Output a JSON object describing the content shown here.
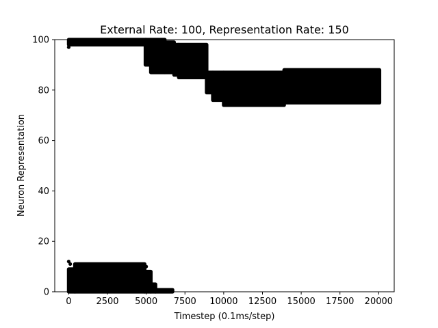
{
  "chart_data": {
    "type": "scatter",
    "title": "External Rate: 100, Representation Rate: 150",
    "xlabel": "Timestep (0.1ms/step)",
    "ylabel": "Neuron Representation",
    "xlim": [
      -900,
      21000
    ],
    "ylim": [
      0,
      100
    ],
    "xticks": [
      0,
      2500,
      5000,
      7500,
      10000,
      12500,
      15000,
      17500,
      20000
    ],
    "xtick_labels": [
      "0",
      "2500",
      "5000",
      "7500",
      "10000",
      "12500",
      "15000",
      "17500",
      "20000"
    ],
    "yticks": [
      0,
      20,
      40,
      60,
      80,
      100
    ],
    "ytick_labels": [
      "0",
      "20",
      "40",
      "60",
      "80",
      "100"
    ],
    "grid": false,
    "marker_color": "#000000",
    "bands": [
      {
        "x0": 0,
        "x1": 5000,
        "y0": 98,
        "y1": 100
      },
      {
        "x0": 4950,
        "x1": 5300,
        "y0": 90,
        "y1": 100
      },
      {
        "x0": 5300,
        "x1": 6200,
        "y0": 87,
        "y1": 100
      },
      {
        "x0": 6200,
        "x1": 6800,
        "y0": 87,
        "y1": 99
      },
      {
        "x0": 6800,
        "x1": 7100,
        "y0": 86,
        "y1": 98
      },
      {
        "x0": 7100,
        "x1": 8900,
        "y0": 85,
        "y1": 98
      },
      {
        "x0": 8900,
        "x1": 9300,
        "y0": 79,
        "y1": 87
      },
      {
        "x0": 9300,
        "x1": 10000,
        "y0": 76,
        "y1": 87
      },
      {
        "x0": 10000,
        "x1": 13900,
        "y0": 74,
        "y1": 87
      },
      {
        "x0": 13900,
        "x1": 20050,
        "y0": 75,
        "y1": 88
      },
      {
        "x0": 0,
        "x1": 400,
        "y0": 0,
        "y1": 9
      },
      {
        "x0": 400,
        "x1": 4900,
        "y0": 0,
        "y1": 11
      },
      {
        "x0": 4900,
        "x1": 5300,
        "y0": 0,
        "y1": 8
      },
      {
        "x0": 5300,
        "x1": 5600,
        "y0": 0,
        "y1": 3
      },
      {
        "x0": 5600,
        "x1": 6700,
        "y0": 0,
        "y1": 0.8
      }
    ],
    "points": [
      {
        "x": 0,
        "y": 97
      },
      {
        "x": 0,
        "y": 12
      },
      {
        "x": 100,
        "y": 11
      },
      {
        "x": 5100,
        "y": 7
      },
      {
        "x": 5000,
        "y": 10
      },
      {
        "x": 5300,
        "y": 2
      }
    ]
  }
}
